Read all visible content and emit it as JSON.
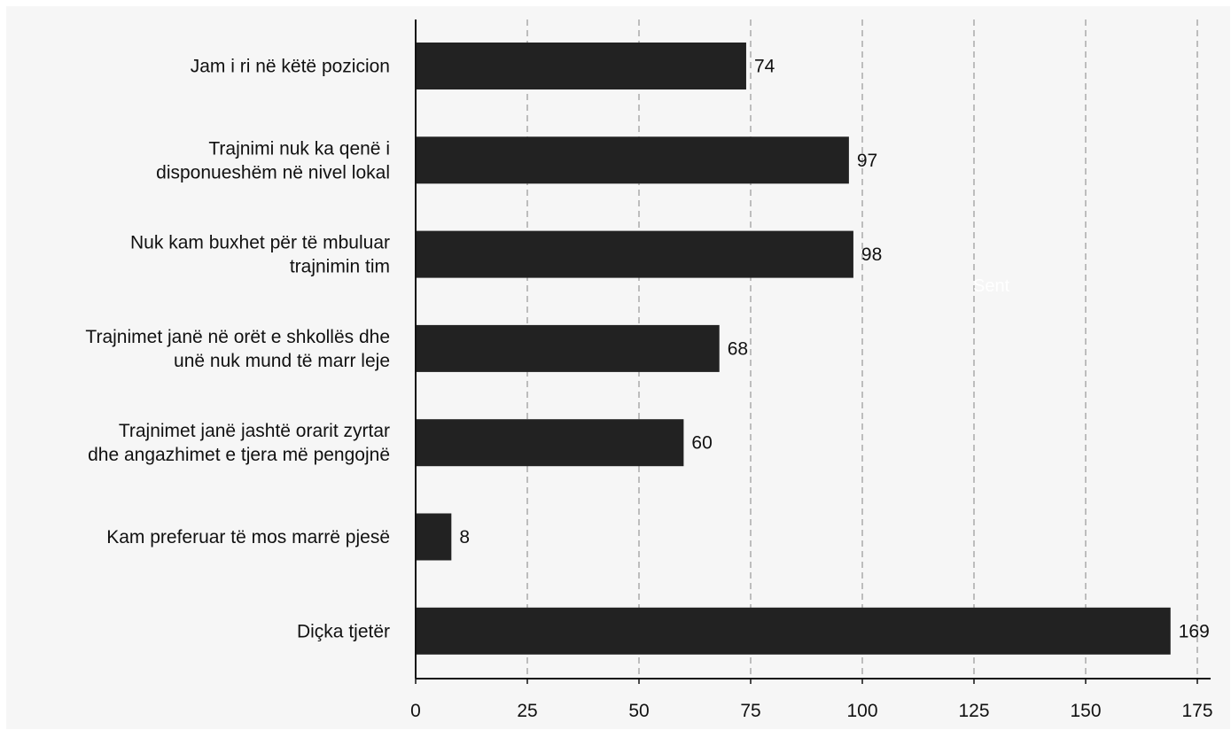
{
  "chart_data": {
    "type": "bar",
    "orientation": "horizontal",
    "categories": [
      [
        "Jam i ri në këtë pozicion"
      ],
      [
        "Trajnimi nuk ka qenë i",
        "disponueshëm në nivel lokal"
      ],
      [
        "Nuk kam buxhet për të mbuluar",
        "trajnimin tim"
      ],
      [
        "Trajnimet janë në orët e shkollës dhe",
        "unë nuk mund të marr leje"
      ],
      [
        "Trajnimet janë jashtë orarit zyrtar",
        "dhe angazhimet e tjera më pengojnë"
      ],
      [
        "Kam preferuar të mos marrë pjesë"
      ],
      [
        "Diçka tjetër"
      ]
    ],
    "values": [
      74,
      97,
      98,
      68,
      60,
      8,
      169
    ],
    "xlim": [
      0,
      175
    ],
    "xticks": [
      0,
      25,
      50,
      75,
      100,
      125,
      150,
      175
    ],
    "grid": "vertical-dashed",
    "bar_color": "#222222",
    "title": "",
    "xlabel": "",
    "ylabel": ""
  },
  "watermark_text": "Sent"
}
